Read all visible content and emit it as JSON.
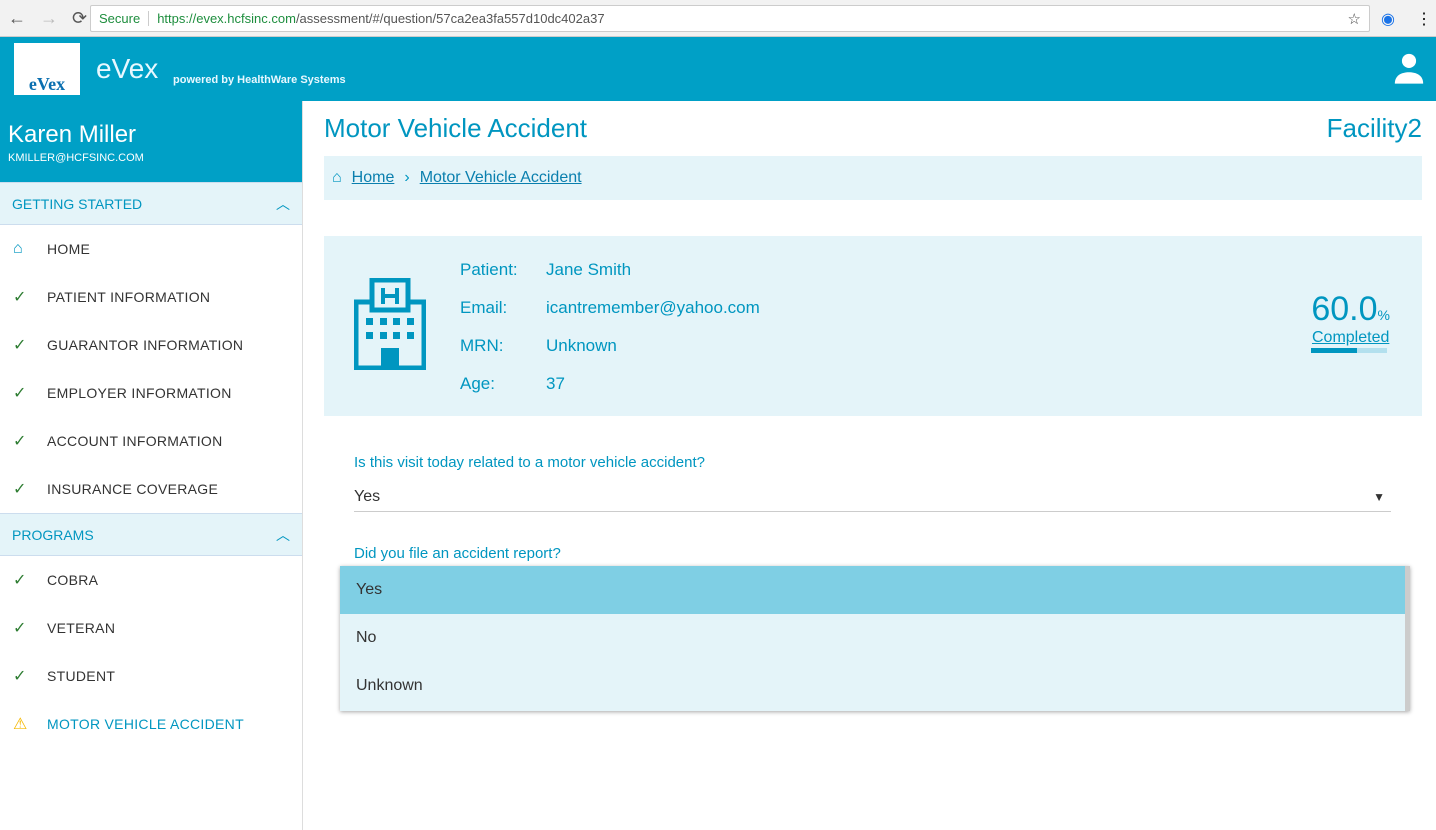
{
  "browser": {
    "secure": "Secure",
    "url_host": "https://evex.hcfsinc.com",
    "url_path": "/assessment/#/question/57ca2ea3fa557d10dc402a37"
  },
  "app": {
    "logo_text": "eVex",
    "brand": "eVex",
    "powered": "powered by HealthWare Systems"
  },
  "profile": {
    "name": "Karen Miller",
    "email": "KMILLER@HCFSINC.COM"
  },
  "sidebar": {
    "sections": [
      {
        "title": "GETTING STARTED",
        "items": [
          {
            "label": "HOME",
            "icon": "home"
          },
          {
            "label": "PATIENT INFORMATION",
            "icon": "check"
          },
          {
            "label": "GUARANTOR INFORMATION",
            "icon": "check"
          },
          {
            "label": "EMPLOYER INFORMATION",
            "icon": "check"
          },
          {
            "label": "ACCOUNT INFORMATION",
            "icon": "check"
          },
          {
            "label": "INSURANCE COVERAGE",
            "icon": "check"
          }
        ]
      },
      {
        "title": "PROGRAMS",
        "items": [
          {
            "label": "COBRA",
            "icon": "check"
          },
          {
            "label": "VETERAN",
            "icon": "check"
          },
          {
            "label": "STUDENT",
            "icon": "check"
          },
          {
            "label": "MOTOR VEHICLE ACCIDENT",
            "icon": "warning"
          }
        ]
      }
    ]
  },
  "page": {
    "title": "Motor Vehicle Accident",
    "facility": "Facility2",
    "breadcrumb": [
      "Home",
      "Motor Vehicle Accident"
    ]
  },
  "patient": {
    "labels": [
      "Patient:",
      "Email:",
      "MRN:",
      "Age:"
    ],
    "values": [
      "Jane Smith",
      "icantremember@yahoo.com",
      "Unknown",
      "37"
    ],
    "percent": "60.0",
    "percent_sign": "%",
    "progress": 0.6,
    "completed": "Completed"
  },
  "questions": [
    {
      "text": "Is this visit today related to a motor vehicle accident?",
      "value": "Yes"
    },
    {
      "text": "Did you file an accident report?",
      "options": [
        "Yes",
        "No",
        "Unknown"
      ],
      "highlighted": "Yes"
    }
  ]
}
